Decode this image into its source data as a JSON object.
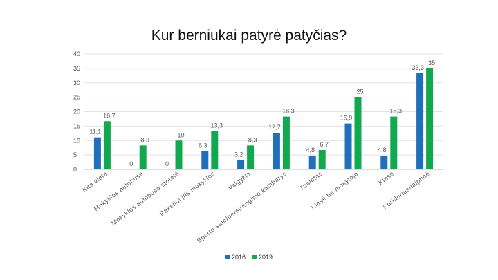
{
  "chart_data": {
    "type": "bar",
    "title": "Kur berniukai patyrė patyčias?",
    "xlabel": "",
    "ylabel": "",
    "ylim": [
      0,
      40
    ],
    "yticks": [
      0,
      5,
      10,
      15,
      20,
      25,
      30,
      35,
      40
    ],
    "grid": true,
    "legend_position": "bottom",
    "categories": [
      "Kita vieta",
      "Mokyklos autobuse",
      "Mokyklos autobuso stotelė",
      "Pakeliui į/iš mokyklos",
      "Valgykla",
      "Sporto salė/persirengimo kambarys",
      "Tualetas",
      "Klasė be mokytojo",
      "Klasė",
      "Koridorius/laiptinė"
    ],
    "series": [
      {
        "name": "2016",
        "color": "#1f6fba",
        "values": [
          11.1,
          0,
          0,
          6.3,
          3.2,
          12.7,
          4.8,
          15.9,
          4.8,
          33.3
        ]
      },
      {
        "name": "2019",
        "color": "#12a84f",
        "values": [
          16.7,
          8.3,
          10,
          13.3,
          8.3,
          18.3,
          6.7,
          25,
          18.3,
          35
        ]
      }
    ]
  }
}
